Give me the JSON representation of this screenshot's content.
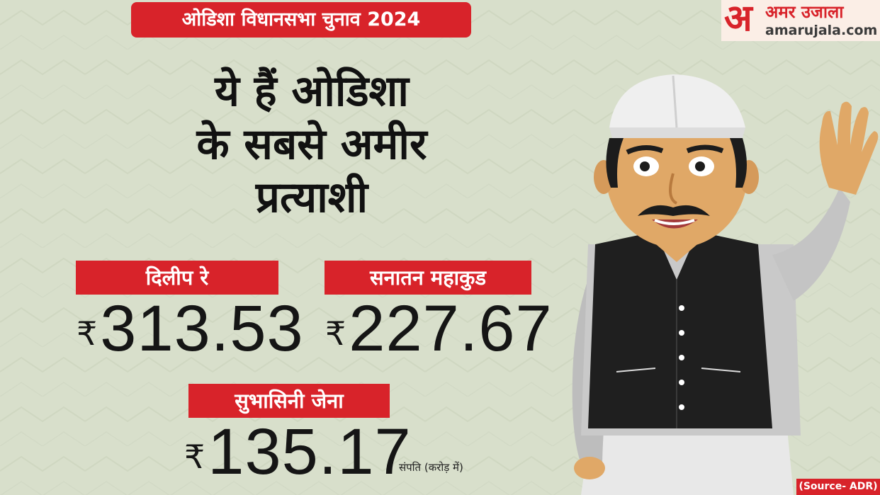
{
  "tag": {
    "text": "ओडिशा विधानसभा चुनाव 2024"
  },
  "logo": {
    "name": "अमर उजाला",
    "mark": "अ",
    "url": "amarujala.com"
  },
  "headline": {
    "lines": [
      "ये हैं ओडिशा",
      "के सबसे अमीर",
      "प्रत्याशी"
    ]
  },
  "candidates": [
    {
      "name": "दिलीप रे",
      "currency": "₹",
      "assets": "313.53"
    },
    {
      "name": "सनातन महाकुड",
      "currency": "₹",
      "assets": "227.67"
    },
    {
      "name": "सुभासिनी जेना",
      "currency": "₹",
      "assets": "135.17"
    }
  ],
  "unit_note": "संपति (करोड़ में)",
  "source": "(Source- ADR)",
  "colors": {
    "accent_red": "#d8232a",
    "background": "#d8dfcb",
    "text": "#111111"
  },
  "illustration": {
    "icon": "waving-politician-figure"
  }
}
